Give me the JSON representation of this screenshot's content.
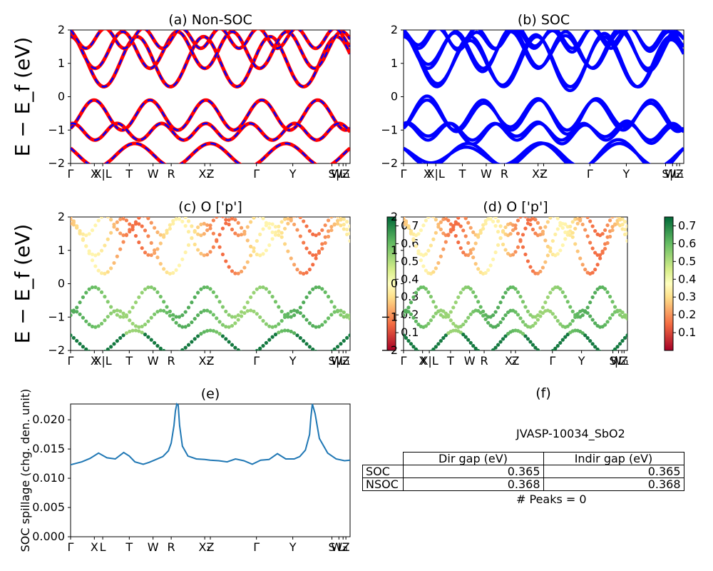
{
  "chart_data": [
    {
      "panel": "a",
      "type": "line",
      "title": "(a) Non-SOC",
      "ylabel": "E − E_f (eV)",
      "ylim": [
        -2,
        2
      ],
      "yticks": [
        "−2",
        "−1",
        "0",
        "1",
        "2"
      ],
      "xticks": [
        "Γ",
        "X",
        "X|L",
        "T",
        "W",
        "R",
        "X₁",
        "Z",
        "Γ",
        "Y",
        "S",
        "W₁",
        "|L₁",
        "Z"
      ],
      "series_colors": [
        "#ff0000",
        "#0000ff"
      ],
      "dashed": true
    },
    {
      "panel": "b",
      "type": "line",
      "title": "(b) SOC",
      "ylim": [
        -2,
        2
      ],
      "yticks": [
        "−2",
        "−1",
        "0",
        "1",
        "2"
      ],
      "xticks": [
        "Γ",
        "X",
        "X|L",
        "T",
        "W",
        "R",
        "X₁",
        "Z",
        "Γ",
        "Y",
        "S",
        "W₁",
        "|L₁",
        "Z"
      ],
      "series_colors": [
        "#0000ff"
      ]
    },
    {
      "panel": "c",
      "type": "scatter",
      "title": "(c)  O ['p']",
      "ylabel": "E − E_f (eV)",
      "ylim": [
        -2,
        2
      ],
      "yticks": [
        "−2",
        "−1",
        "0",
        "1",
        "2"
      ],
      "xticks": [
        "Γ",
        "X",
        "X|L",
        "T",
        "W",
        "R",
        "X₁",
        "Z",
        "Γ",
        "Y",
        "S",
        "W₁",
        "|L₁",
        "Z"
      ],
      "colorbar": {
        "ticks": [
          "0.1",
          "0.2",
          "0.3",
          "0.4",
          "0.5",
          "0.6",
          "0.7"
        ],
        "range": [
          0,
          0.75
        ],
        "colormap": "RdYlGn"
      }
    },
    {
      "panel": "d",
      "type": "scatter",
      "title": "(d) O ['p']",
      "ylim": [
        -2,
        2
      ],
      "yticks": [
        "−2",
        "−1",
        "0",
        "1",
        "2"
      ],
      "xticks": [
        "Γ",
        "X",
        "X|L",
        "T",
        "W",
        "R",
        "X₁",
        "Z",
        "Γ",
        "Y",
        "S",
        "W₁",
        "|L₁",
        "Z"
      ],
      "colorbar": {
        "ticks": [
          "0.1",
          "0.2",
          "0.3",
          "0.4",
          "0.5",
          "0.6",
          "0.7"
        ],
        "range": [
          0,
          0.75
        ],
        "colormap": "RdYlGn"
      }
    },
    {
      "panel": "e",
      "type": "line",
      "title": "(e)",
      "ylabel": "SOC spillage (chg. den. unit)",
      "ylim": [
        0,
        0.0227
      ],
      "yticks": [
        "0.000",
        "0.005",
        "0.010",
        "0.015",
        "0.020"
      ],
      "xticks": [
        "Γ",
        "X",
        "L",
        "T",
        "W",
        "R",
        "X₁",
        "Z",
        "Γ",
        "Y",
        "S",
        "W₁",
        "L₁",
        "Z"
      ],
      "series": [
        {
          "x": [
            0,
            0.04,
            0.07,
            0.1,
            0.13,
            0.16,
            0.19,
            0.21,
            0.23,
            0.26,
            0.28,
            0.3,
            0.33,
            0.35,
            0.36,
            0.37,
            0.375,
            0.38,
            0.385,
            0.39,
            0.4,
            0.42,
            0.45,
            0.48,
            0.5,
            0.53,
            0.56,
            0.59,
            0.62,
            0.65,
            0.68,
            0.71,
            0.74,
            0.77,
            0.8,
            0.82,
            0.84,
            0.855,
            0.86,
            0.865,
            0.875,
            0.89,
            0.92,
            0.95,
            0.98,
            1.0
          ],
          "y": [
            0.0123,
            0.0128,
            0.0134,
            0.0143,
            0.0135,
            0.0133,
            0.0144,
            0.0138,
            0.0128,
            0.0124,
            0.0127,
            0.0131,
            0.0137,
            0.0147,
            0.016,
            0.019,
            0.0215,
            0.0235,
            0.0225,
            0.019,
            0.0155,
            0.0138,
            0.0133,
            0.0132,
            0.0131,
            0.013,
            0.0128,
            0.0133,
            0.013,
            0.0124,
            0.0131,
            0.0132,
            0.0142,
            0.0133,
            0.0133,
            0.0137,
            0.0148,
            0.0175,
            0.0205,
            0.0235,
            0.021,
            0.0168,
            0.0143,
            0.0133,
            0.013,
            0.0131
          ],
          "color": "#1f77b4"
        }
      ]
    },
    {
      "panel": "f",
      "type": "table",
      "title": "(f)",
      "name": "JVASP-10034_SbO2",
      "columns": [
        "Dir gap (eV)",
        "Indir gap (eV)"
      ],
      "rows": [
        {
          "label": "SOC",
          "values": [
            "0.365",
            "0.365"
          ]
        },
        {
          "label": "NSOC",
          "values": [
            "0.368",
            "0.368"
          ]
        }
      ],
      "footer": "# Peaks = 0"
    }
  ]
}
